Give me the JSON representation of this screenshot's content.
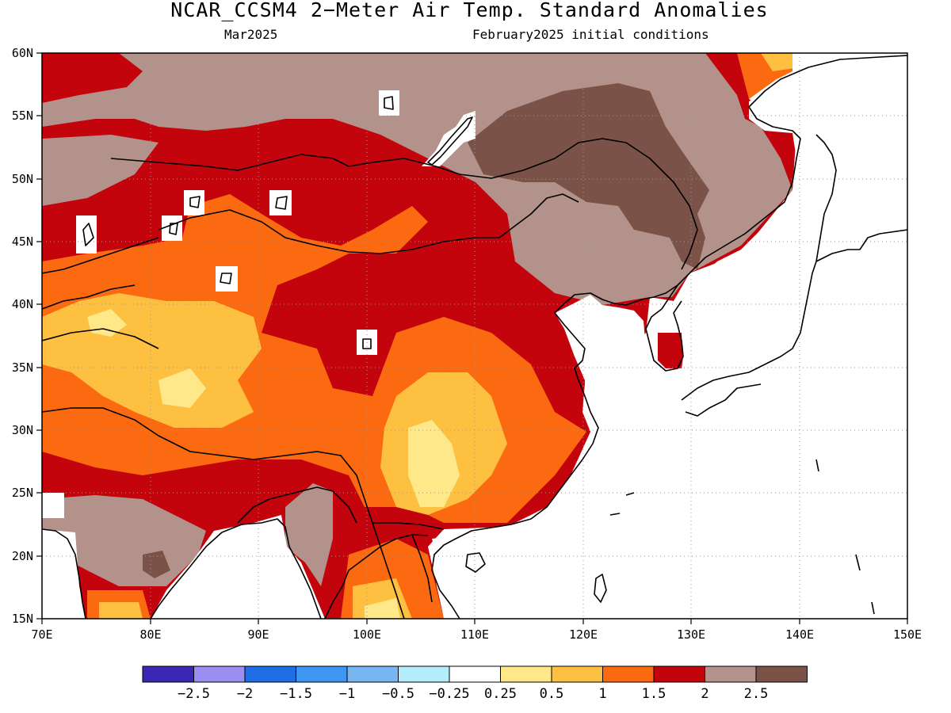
{
  "title": "NCAR_CCSM4 2−Meter Air Temp. Standard Anomalies",
  "subtitle_left": "Mar2025",
  "subtitle_right": "February2025 initial conditions",
  "map": {
    "lon_range": [
      70,
      150
    ],
    "lat_range": [
      15,
      60
    ],
    "lon_ticks": [
      "70E",
      "80E",
      "90E",
      "100E",
      "110E",
      "120E",
      "130E",
      "140E",
      "150E"
    ],
    "lat_ticks": [
      "15N",
      "20N",
      "25N",
      "30N",
      "35N",
      "40N",
      "45N",
      "50N",
      "55N",
      "60N"
    ],
    "ocean_masked": true,
    "grid_dotted": true
  },
  "colorbar": {
    "colors": [
      "#3a28b4",
      "#9a8ef2",
      "#1f6ee6",
      "#3d96f2",
      "#78b6f2",
      "#b3ecfb",
      "#ffffff",
      "#fee88a",
      "#fdc040",
      "#fb6a10",
      "#c4040c",
      "#b2928a",
      "#7a5248"
    ],
    "labels": [
      "−2.5",
      "−2",
      "−1.5",
      "−1",
      "−0.5",
      "−0.25",
      "0.25",
      "0.5",
      "1",
      "1.5",
      "2",
      "2.5"
    ]
  },
  "region_fills": {
    "dark_red": "#c4040c",
    "orange": "#fb6a10",
    "light_orange": "#fdc040",
    "yellow": "#fee88a",
    "tan": "#b2928a",
    "dark_brown": "#7a5248"
  }
}
